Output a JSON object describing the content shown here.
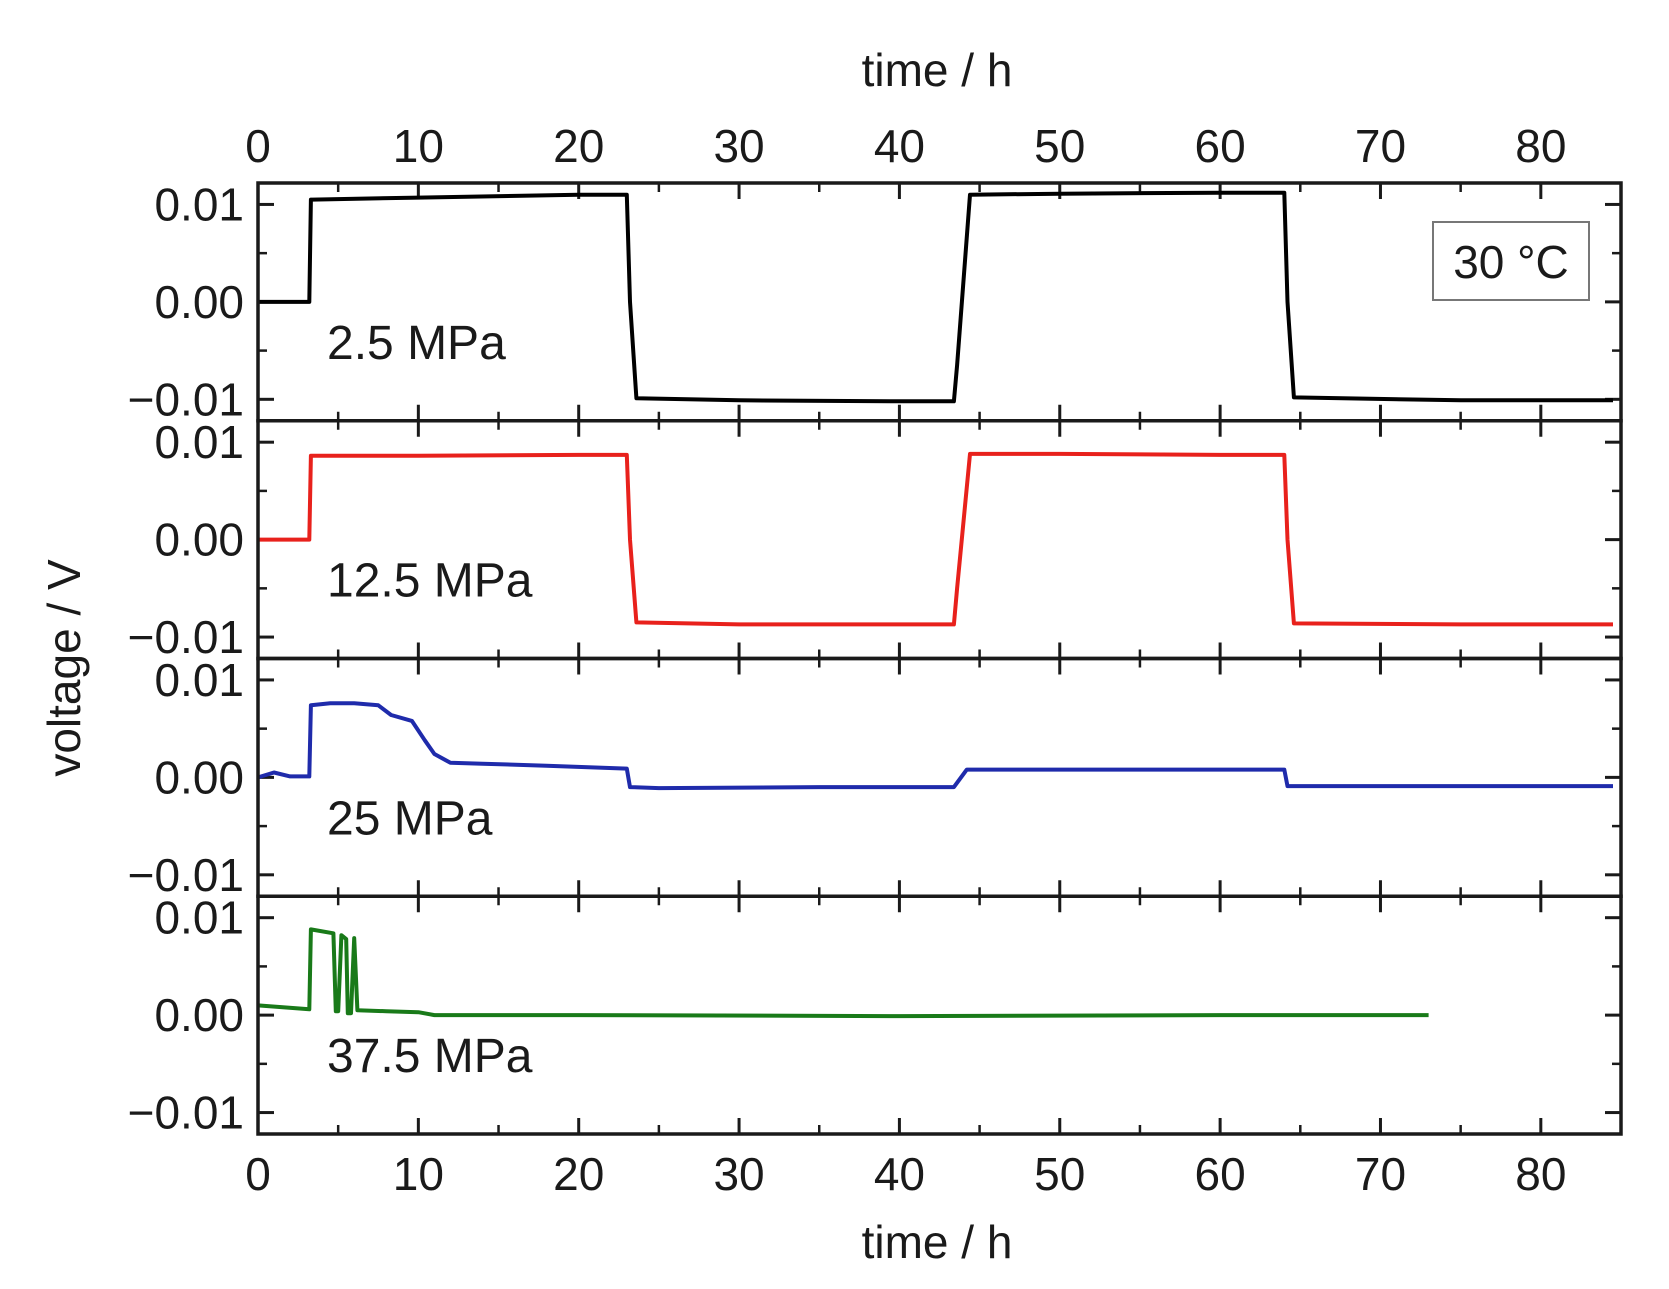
{
  "chart_data": {
    "type": "line",
    "layout": "stacked-panels",
    "x_axis": {
      "top_title": "time / h",
      "bottom_title": "time / h",
      "range": [
        0,
        85
      ],
      "ticks": [
        0,
        10,
        20,
        30,
        40,
        50,
        60,
        70,
        80
      ],
      "tick_labels": [
        "0",
        "10",
        "20",
        "30",
        "40",
        "50",
        "60",
        "70",
        "80"
      ]
    },
    "y_axis": {
      "title": "voltage / V",
      "range": [
        -0.0122,
        0.0122
      ],
      "ticks": [
        0.01,
        0.0,
        -0.01
      ],
      "tick_labels": [
        "0.01",
        "0.00",
        "−0.01"
      ]
    },
    "annotation": "30 °C",
    "panels": [
      {
        "label": "2.5 MPa",
        "color": "#000000",
        "x": [
          0,
          3.2,
          3.3,
          3.4,
          10,
          20,
          23.0,
          23.2,
          23.6,
          30,
          40,
          43.4,
          43.6,
          44.4,
          50,
          60,
          64.0,
          64.2,
          64.6,
          75,
          84.5
        ],
        "y": [
          0.0,
          0.0,
          0.0105,
          0.0105,
          0.0107,
          0.011,
          0.011,
          0.0,
          -0.0099,
          -0.0101,
          -0.0102,
          -0.0102,
          -0.0065,
          0.011,
          0.0111,
          0.0112,
          0.0112,
          0.0,
          -0.0098,
          -0.0101,
          -0.0101
        ]
      },
      {
        "label": "12.5 MPa",
        "color": "#e8211c",
        "x": [
          0,
          3.2,
          3.3,
          3.4,
          10,
          20,
          23.0,
          23.2,
          23.6,
          30,
          40,
          43.4,
          43.6,
          44.4,
          50,
          60,
          64.0,
          64.2,
          64.6,
          75,
          84.5
        ],
        "y": [
          0.0,
          0.0,
          0.0086,
          0.0086,
          0.0086,
          0.0087,
          0.0087,
          0.0,
          -0.0085,
          -0.0087,
          -0.0087,
          -0.0087,
          -0.005,
          0.0088,
          0.0088,
          0.0087,
          0.0087,
          0.0,
          -0.0086,
          -0.0087,
          -0.0087
        ]
      },
      {
        "label": "25 MPa",
        "color": "#1f2bab",
        "x": [
          0,
          1.0,
          2.0,
          3.2,
          3.3,
          4.5,
          6,
          7.5,
          8.3,
          9.6,
          10.4,
          11.0,
          12.0,
          14,
          18,
          23.0,
          23.2,
          25,
          35,
          43.4,
          44.2,
          50,
          60,
          64.0,
          64.2,
          70,
          84.5
        ],
        "y": [
          0.0,
          0.0005,
          0.0001,
          0.0001,
          0.0074,
          0.0076,
          0.0076,
          0.0074,
          0.0064,
          0.0058,
          0.0038,
          0.0024,
          0.0015,
          0.0014,
          0.0012,
          0.0009,
          -0.001,
          -0.0011,
          -0.001,
          -0.001,
          0.0008,
          0.0008,
          0.0008,
          0.0008,
          -0.0009,
          -0.0009,
          -0.0009
        ]
      },
      {
        "label": "37.5 MPa",
        "color": "#197a19",
        "x": [
          0,
          3.2,
          3.3,
          4.7,
          4.85,
          5.0,
          5.2,
          5.5,
          5.6,
          5.8,
          6.0,
          6.2,
          8,
          10,
          11,
          20,
          40,
          60,
          73
        ],
        "y": [
          0.001,
          0.0006,
          0.0088,
          0.0084,
          0.0004,
          0.0004,
          0.0082,
          0.0078,
          0.0002,
          0.0002,
          0.0079,
          0.0005,
          0.0004,
          0.0003,
          0.0,
          0.0,
          -0.0001,
          0.0,
          0.0
        ]
      }
    ]
  }
}
